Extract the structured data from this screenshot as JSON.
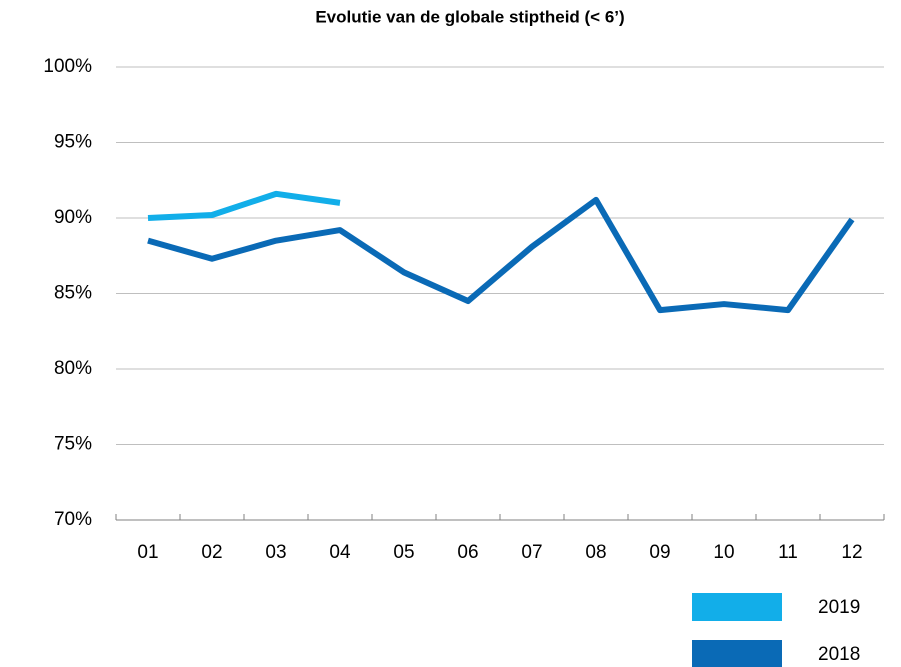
{
  "chart_data": {
    "type": "line",
    "title": "Evolutie van de globale stiptheid (< 6’)",
    "categories": [
      "01",
      "02",
      "03",
      "04",
      "05",
      "06",
      "07",
      "08",
      "09",
      "10",
      "11",
      "12"
    ],
    "series": [
      {
        "name": "2019",
        "color": "#12aee9",
        "values": [
          90.0,
          90.2,
          91.6,
          91.0,
          null,
          null,
          null,
          null,
          null,
          null,
          null,
          null
        ]
      },
      {
        "name": "2018",
        "color": "#0a6ab6",
        "values": [
          88.5,
          87.3,
          88.5,
          89.2,
          86.4,
          84.5,
          88.1,
          91.2,
          83.9,
          84.3,
          83.9,
          89.9
        ]
      }
    ],
    "ylim": [
      70,
      100
    ],
    "yticks": [
      {
        "value": 70,
        "label": "70%"
      },
      {
        "value": 75,
        "label": "75%"
      },
      {
        "value": 80,
        "label": "80%"
      },
      {
        "value": 85,
        "label": "85%"
      },
      {
        "value": 90,
        "label": "90%"
      },
      {
        "value": 95,
        "label": "95%"
      },
      {
        "value": 100,
        "label": "100%"
      }
    ],
    "grid": true,
    "legend": "bottom-right"
  }
}
